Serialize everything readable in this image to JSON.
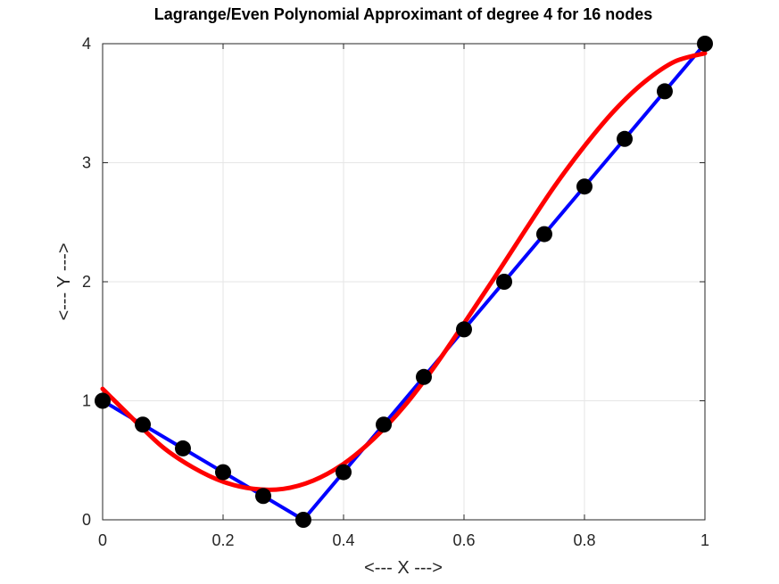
{
  "chart_data": {
    "type": "line",
    "title": "Lagrange/Even Polynomial Approximant of degree 4 for 16 nodes",
    "xlabel": "<--- X --->",
    "ylabel": "<--- Y --->",
    "xlim": [
      0,
      1
    ],
    "ylim": [
      0,
      4
    ],
    "x_ticks": [
      0,
      0.2,
      0.4,
      0.6,
      0.8,
      1
    ],
    "x_tick_labels": [
      "0",
      "0.2",
      "0.4",
      "0.6",
      "0.8",
      "1"
    ],
    "y_ticks": [
      0,
      1,
      2,
      3,
      4
    ],
    "y_tick_labels": [
      "0",
      "1",
      "2",
      "3",
      "4"
    ],
    "grid": true,
    "series": [
      {
        "role": "nodes",
        "style": "markers",
        "color": "#000000",
        "x": [
          0,
          0.0667,
          0.1333,
          0.2,
          0.2667,
          0.3333,
          0.4,
          0.4667,
          0.5333,
          0.6,
          0.6667,
          0.7333,
          0.8,
          0.8667,
          0.9333,
          1
        ],
        "y": [
          1,
          0.8,
          0.6,
          0.4,
          0.2,
          0,
          0.4,
          0.8,
          1.2,
          1.6,
          2.0,
          2.4,
          2.8,
          3.2,
          3.6,
          4.0
        ]
      },
      {
        "role": "function",
        "style": "line",
        "color": "#0000ff",
        "x": [
          0,
          0.3333,
          1
        ],
        "y": [
          1,
          0,
          4
        ]
      },
      {
        "role": "approximant",
        "style": "line",
        "color": "#ff0000",
        "x": [
          0,
          0.05,
          0.1,
          0.15,
          0.2,
          0.25,
          0.3,
          0.35,
          0.4,
          0.45,
          0.5,
          0.55,
          0.6,
          0.65,
          0.7,
          0.75,
          0.8,
          0.85,
          0.9,
          0.95,
          1.0
        ],
        "y": [
          1.1,
          0.85,
          0.61,
          0.44,
          0.32,
          0.26,
          0.26,
          0.33,
          0.47,
          0.68,
          0.95,
          1.28,
          1.65,
          2.03,
          2.42,
          2.8,
          3.14,
          3.44,
          3.68,
          3.85,
          3.92
        ]
      }
    ]
  }
}
